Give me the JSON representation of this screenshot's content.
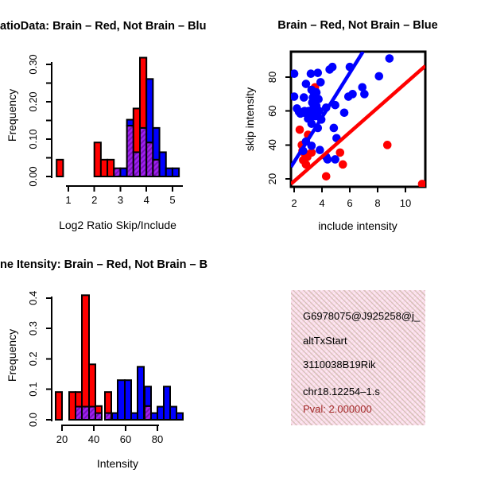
{
  "window_background": "#FFFFFF",
  "colors": {
    "red": "#FF0000",
    "blue": "#0000FF",
    "overlap_purple": "#A020F0",
    "overlap_stripe": "#7612B8",
    "axis": "#000000",
    "info_box_pink": "#FBDCEB",
    "pval_red": "#A52A2A"
  },
  "chart_data": [
    {
      "type": "bar",
      "variant": "overlaid-histogram",
      "position": "top-left",
      "title": "atioData: Brain – Red, Not Brain – Blu",
      "xlabel": "Log2 Ratio Skip/Include",
      "ylabel": "Frequency",
      "xlim": [
        0.36,
        5.46
      ],
      "ylim": [
        -0.0213,
        0.3553
      ],
      "xticks": {
        "values": [
          1,
          2,
          3,
          4,
          5
        ],
        "labels": [
          "1",
          "2",
          "3",
          "4",
          "5"
        ]
      },
      "yticks": {
        "values": [
          0,
          0.05,
          0.1,
          0.15,
          0.2,
          0.25,
          0.3
        ],
        "labels": [
          "0.00",
          "",
          "0.10",
          "",
          "0.20",
          "",
          "0.30"
        ]
      },
      "series": [
        {
          "name": "Brain",
          "color": "#FF0000"
        },
        {
          "name": "Not Brain",
          "color": "#0000FF"
        }
      ],
      "grid": false,
      "legend": "none",
      "bins": [
        {
          "x0": 0.55,
          "x1": 0.8,
          "red": 0.045,
          "blue": 0
        },
        {
          "x0": 2.0,
          "x1": 2.25,
          "red": 0.091,
          "blue": 0
        },
        {
          "x0": 2.25,
          "x1": 2.5,
          "red": 0.045,
          "blue": 0
        },
        {
          "x0": 2.5,
          "x1": 2.75,
          "red": 0.045,
          "blue": 0
        },
        {
          "x0": 2.75,
          "x1": 3.0,
          "red": 0.022,
          "blue": 0.022
        },
        {
          "x0": 3.0,
          "x1": 3.25,
          "red": 0,
          "blue": 0.022
        },
        {
          "x0": 3.25,
          "x1": 3.5,
          "red": 0.136,
          "blue": 0.152
        },
        {
          "x0": 3.5,
          "x1": 3.75,
          "red": 0.182,
          "blue": 0.065
        },
        {
          "x0": 3.75,
          "x1": 4.0,
          "red": 0.318,
          "blue": 0.13
        },
        {
          "x0": 4.0,
          "x1": 4.25,
          "red": 0.091,
          "blue": 0.261
        },
        {
          "x0": 4.25,
          "x1": 4.5,
          "red": 0.045,
          "blue": 0.13
        },
        {
          "x0": 4.5,
          "x1": 4.75,
          "red": 0,
          "blue": 0.065
        },
        {
          "x0": 4.75,
          "x1": 5.0,
          "red": 0,
          "blue": 0.022
        },
        {
          "x0": 5.0,
          "x1": 5.25,
          "red": 0,
          "blue": 0.022
        }
      ]
    },
    {
      "type": "scatter",
      "position": "top-right",
      "title": "Brain – Red, Not Brain – Blue",
      "xlabel": "include intensity",
      "ylabel": "skip intensity",
      "xlim": [
        1.77,
        11.43
      ],
      "ylim": [
        15.3,
        95
      ],
      "xticks": {
        "values": [
          2,
          4,
          6,
          8,
          10
        ],
        "labels": [
          "2",
          "4",
          "6",
          "8",
          "10"
        ]
      },
      "yticks": {
        "values": [
          20,
          40,
          60,
          80
        ],
        "labels": [
          "20",
          "40",
          "60",
          "80"
        ]
      },
      "grid": false,
      "legend": "none",
      "series": [
        {
          "name": "Not Brain",
          "color": "#0000FF",
          "points": [
            [
              2.0,
              82
            ],
            [
              2.0,
              68.5
            ],
            [
              2.2,
              61.5
            ],
            [
              2.35,
              59.5
            ],
            [
              2.45,
              58.5
            ],
            [
              2.6,
              59
            ],
            [
              2.65,
              36.5
            ],
            [
              2.7,
              68
            ],
            [
              2.75,
              60
            ],
            [
              2.85,
              76
            ],
            [
              2.85,
              42
            ],
            [
              2.9,
              58.5
            ],
            [
              3.0,
              55.5
            ],
            [
              3.05,
              60
            ],
            [
              3.2,
              82
            ],
            [
              3.25,
              72.5
            ],
            [
              3.25,
              52.5
            ],
            [
              3.25,
              39.5
            ],
            [
              3.3,
              65
            ],
            [
              3.35,
              68
            ],
            [
              3.4,
              62
            ],
            [
              3.4,
              57
            ],
            [
              3.45,
              70
            ],
            [
              3.45,
              64
            ],
            [
              3.5,
              68
            ],
            [
              3.5,
              66
            ],
            [
              3.5,
              61
            ],
            [
              3.55,
              57
            ],
            [
              3.55,
              62
            ],
            [
              3.6,
              71
            ],
            [
              3.6,
              63
            ],
            [
              3.65,
              58
            ],
            [
              3.7,
              82.5
            ],
            [
              3.7,
              50
            ],
            [
              3.75,
              67
            ],
            [
              3.8,
              60
            ],
            [
              3.85,
              37
            ],
            [
              3.9,
              77
            ],
            [
              3.95,
              55
            ],
            [
              4.3,
              62
            ],
            [
              4.3,
              33
            ],
            [
              4.4,
              31.5
            ],
            [
              4.55,
              84.5
            ],
            [
              4.75,
              86
            ],
            [
              4.85,
              50
            ],
            [
              4.95,
              63.5
            ],
            [
              4.95,
              31.5
            ],
            [
              5.05,
              44
            ],
            [
              5.6,
              59
            ],
            [
              5.9,
              68.5
            ],
            [
              6.0,
              86
            ],
            [
              6.2,
              70
            ],
            [
              6.9,
              74
            ],
            [
              7.05,
              70
            ],
            [
              8.1,
              80.5
            ],
            [
              8.85,
              91
            ]
          ]
        },
        {
          "name": "Brain",
          "color": "#FF0000",
          "points": [
            [
              2.4,
              49
            ],
            [
              3.0,
              46
            ],
            [
              2.55,
              40
            ],
            [
              2.6,
              36.5
            ],
            [
              2.65,
              31
            ],
            [
              2.75,
              35
            ],
            [
              2.85,
              28.5
            ],
            [
              2.95,
              33
            ],
            [
              3.25,
              35.5
            ],
            [
              3.5,
              74
            ],
            [
              4.3,
              21.5
            ],
            [
              5.3,
              35.5
            ],
            [
              5.5,
              28.5
            ],
            [
              8.7,
              40
            ],
            [
              11.2,
              17
            ]
          ]
        }
      ],
      "lines": [
        {
          "series": "Brain",
          "color": "#FF0000",
          "x1": 1.77,
          "y1": 17,
          "x2": 11.43,
          "y2": 86.6
        },
        {
          "series": "Not Brain",
          "color": "#0000FF",
          "x1": 1.77,
          "y1": 27,
          "x2": 6.95,
          "y2": 95
        }
      ]
    },
    {
      "type": "bar",
      "variant": "overlaid-histogram",
      "position": "bottom-left",
      "title": "ne Itensity: Brain – Red, Not Brain – B",
      "xlabel": "Intensity",
      "ylabel": "Frequency",
      "xlim": [
        13.5,
        97
      ],
      "ylim": [
        -0.0183,
        0.4386
      ],
      "xticks": {
        "values": [
          20,
          40,
          60,
          80
        ],
        "labels": [
          "20",
          "40",
          "60",
          "80"
        ]
      },
      "yticks": {
        "values": [
          0,
          0.1,
          0.2,
          0.3,
          0.4
        ],
        "labels": [
          "0.0",
          "0.1",
          "0.2",
          "0.3",
          "0.4"
        ]
      },
      "series": [
        {
          "name": "Brain",
          "color": "#FF0000"
        },
        {
          "name": "Not Brain",
          "color": "#0000FF"
        }
      ],
      "grid": false,
      "legend": "none",
      "bins": [
        {
          "x0": 16,
          "x1": 20,
          "red": 0.091,
          "blue": 0
        },
        {
          "x0": 24.5,
          "x1": 28.5,
          "red": 0.091,
          "blue": 0
        },
        {
          "x0": 28.5,
          "x1": 32.5,
          "red": 0.091,
          "blue": 0.043
        },
        {
          "x0": 32.5,
          "x1": 37,
          "red": 0.409,
          "blue": 0.043
        },
        {
          "x0": 37,
          "x1": 41,
          "red": 0.182,
          "blue": 0.043
        },
        {
          "x0": 41,
          "x1": 45,
          "red": 0.045,
          "blue": 0.022
        },
        {
          "x0": 47,
          "x1": 51,
          "red": 0.091,
          "blue": 0.022
        },
        {
          "x0": 51.5,
          "x1": 55,
          "red": 0,
          "blue": 0.022
        },
        {
          "x0": 55,
          "x1": 59.5,
          "red": 0,
          "blue": 0.13
        },
        {
          "x0": 59.5,
          "x1": 63.5,
          "red": 0,
          "blue": 0.13
        },
        {
          "x0": 63.5,
          "x1": 67.5,
          "red": 0,
          "blue": 0.022
        },
        {
          "x0": 67.5,
          "x1": 71.5,
          "red": 0,
          "blue": 0.174
        },
        {
          "x0": 72,
          "x1": 76,
          "red": 0.045,
          "blue": 0.109
        },
        {
          "x0": 76,
          "x1": 80,
          "red": 0,
          "blue": 0.022
        },
        {
          "x0": 80,
          "x1": 84,
          "red": 0,
          "blue": 0.043
        },
        {
          "x0": 84,
          "x1": 88,
          "red": 0,
          "blue": 0.109
        },
        {
          "x0": 88,
          "x1": 92,
          "red": 0,
          "blue": 0.043
        },
        {
          "x0": 92,
          "x1": 96,
          "red": 0,
          "blue": 0.022
        }
      ]
    }
  ],
  "info_panel": {
    "lines": [
      "G6978075@J925258@j_",
      "altTxStart",
      "3110038B19Rik",
      "chr18.12254–1.s"
    ],
    "pval_line": "Pval: 2.000000",
    "pval_color": "#A52A2A",
    "box_color": "#FBDCEB"
  }
}
